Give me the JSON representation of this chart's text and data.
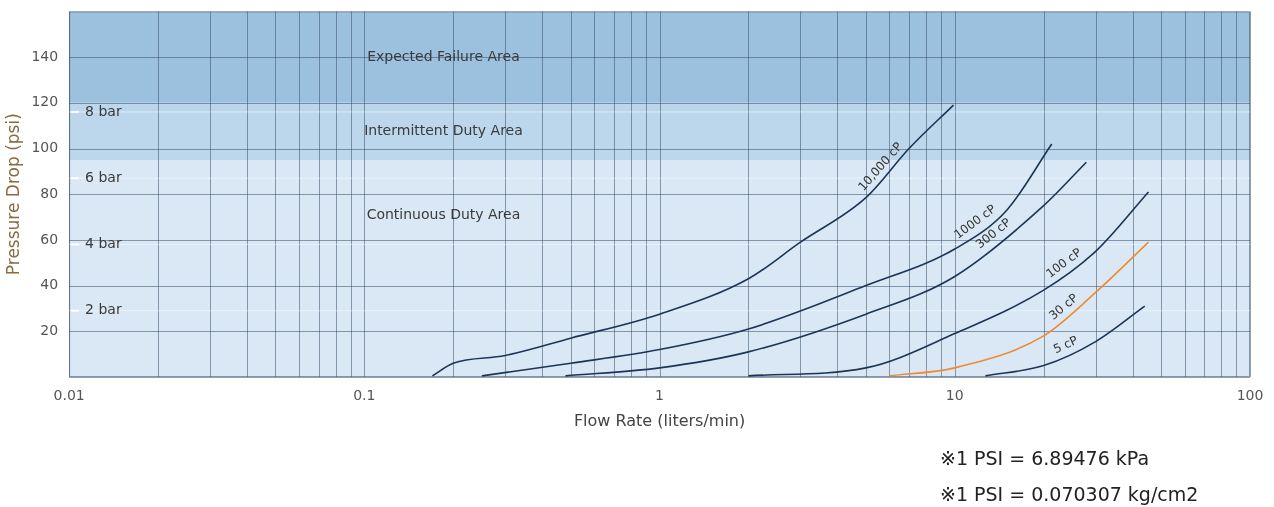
{
  "chart_data": {
    "type": "line",
    "xlabel": "Flow Rate (liters/min)",
    "ylabel": "Pressure Drop (psi)",
    "log": "x",
    "grid": true,
    "legend": false,
    "marker": "none",
    "line_style": "solid",
    "xlim": [
      0.01,
      100
    ],
    "ylim": [
      0,
      160
    ],
    "xticks": [
      0.01,
      {
        "value": 0.02,
        "label": null
      },
      {
        "value": 0.03,
        "label": null
      },
      {
        "value": 0.04,
        "label": null
      },
      {
        "value": 0.05,
        "label": null
      },
      {
        "value": 0.06,
        "label": null
      },
      {
        "value": 0.07,
        "label": null
      },
      {
        "value": 0.08,
        "label": null
      },
      {
        "value": 0.09,
        "label": null
      },
      0.1,
      {
        "value": 0.2,
        "label": null
      },
      {
        "value": 0.3,
        "label": null
      },
      {
        "value": 0.4,
        "label": null
      },
      {
        "value": 0.5,
        "label": null
      },
      {
        "value": 0.6,
        "label": null
      },
      {
        "value": 0.7,
        "label": null
      },
      {
        "value": 0.8,
        "label": null
      },
      {
        "value": 0.9,
        "label": null
      },
      1,
      {
        "value": 2,
        "label": null
      },
      {
        "value": 3,
        "label": null
      },
      {
        "value": 4,
        "label": null
      },
      {
        "value": 5,
        "label": null
      },
      {
        "value": 6,
        "label": null
      },
      {
        "value": 7,
        "label": null
      },
      {
        "value": 8,
        "label": null
      },
      {
        "value": 9,
        "label": null
      },
      10,
      {
        "value": 20,
        "label": null
      },
      {
        "value": 30,
        "label": null
      },
      {
        "value": 40,
        "label": null
      },
      {
        "value": 50,
        "label": null
      },
      {
        "value": 60,
        "label": null
      },
      {
        "value": 70,
        "label": null
      },
      {
        "value": 80,
        "label": null
      },
      {
        "value": 90,
        "label": null
      },
      100
    ],
    "yticks": [
      {
        "value": 0,
        "label": null
      },
      20,
      40,
      60,
      80,
      100,
      120,
      140
    ],
    "series": [
      {
        "name": "10,000 cP",
        "color": "#1c3557",
        "x": [
          0.17,
          0.2,
          0.3,
          0.5,
          1,
          2,
          3,
          5,
          7,
          9.9
        ],
        "values": [
          0.5,
          6,
          9.4,
          17,
          27.5,
          43,
          59,
          78.5,
          100,
          119
        ]
      },
      {
        "name": "1000 cP",
        "color": "#1c3557",
        "x": [
          0.25,
          0.5,
          1,
          2,
          5,
          10,
          15,
          21.3
        ],
        "values": [
          0.5,
          6,
          12,
          21,
          40,
          56,
          73,
          102
        ]
      },
      {
        "name": "300 cP",
        "color": "#1c3557",
        "x": [
          0.48,
          1,
          2,
          5,
          10,
          20,
          27.9
        ],
        "values": [
          0.5,
          4,
          11,
          27.5,
          44,
          75,
          94
        ]
      },
      {
        "name": "100 cP",
        "color": "#1c3557",
        "x": [
          2,
          5,
          10,
          20,
          30,
          45.3
        ],
        "values": [
          0.5,
          4,
          19,
          38,
          55,
          81
        ]
      },
      {
        "name": "30 cP",
        "color": "#f08a30",
        "x": [
          6,
          10,
          20,
          30,
          45.3
        ],
        "values": [
          0.5,
          4,
          18,
          37,
          59
        ]
      },
      {
        "name": "5 cP",
        "color": "#1c3557",
        "x": [
          12.7,
          20,
          30,
          44
        ],
        "values": [
          0.5,
          5,
          15.5,
          31
        ]
      }
    ],
    "bands": [
      {
        "axis": "y",
        "from": 120,
        "to": 160,
        "label": "Expected Failure Area",
        "color": "#9cc1de"
      },
      {
        "axis": "y",
        "from": 95,
        "to": 120,
        "label": "Intermittent Duty Area",
        "color": "#bcd7ec"
      },
      {
        "axis": "y",
        "from": 0,
        "to": 95,
        "label": "Continuous Duty Area",
        "color": "#d9e8f4"
      }
    ],
    "ref_lines": [
      {
        "axis": "y",
        "value": 29,
        "label": "2 bar",
        "color": "#ffffff"
      },
      {
        "axis": "y",
        "value": 58,
        "label": "4 bar",
        "color": "#ffffff"
      },
      {
        "axis": "y",
        "value": 87,
        "label": "6 bar",
        "color": "#ffffff"
      },
      {
        "axis": "y",
        "value": 116,
        "label": "8 bar",
        "color": "#ffffff"
      }
    ],
    "annotations": [
      "※1 PSI = 6.89476 kPa",
      "※1 PSI = 0.070307 kg/cm2"
    ]
  }
}
